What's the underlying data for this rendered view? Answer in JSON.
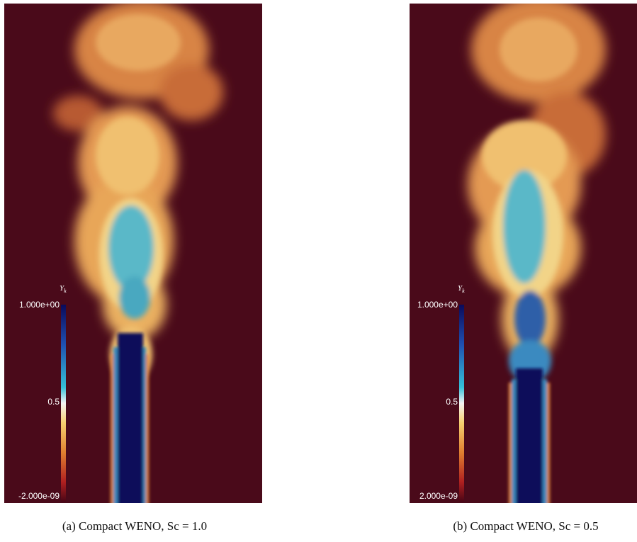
{
  "panels": [
    {
      "caption": "(a) Compact WENO, Sc = 1.0",
      "colorbar": {
        "label": "Y",
        "label_subscript": "k",
        "ticks": [
          "1.000e+00",
          "0.5",
          "-2.000e-09"
        ]
      }
    },
    {
      "caption": "(b) Compact WENO, Sc = 0.5",
      "colorbar": {
        "label": "Y",
        "label_subscript": "k",
        "ticks": [
          "1.000e+00",
          "0.5",
          "2.000e-09"
        ]
      }
    }
  ]
}
